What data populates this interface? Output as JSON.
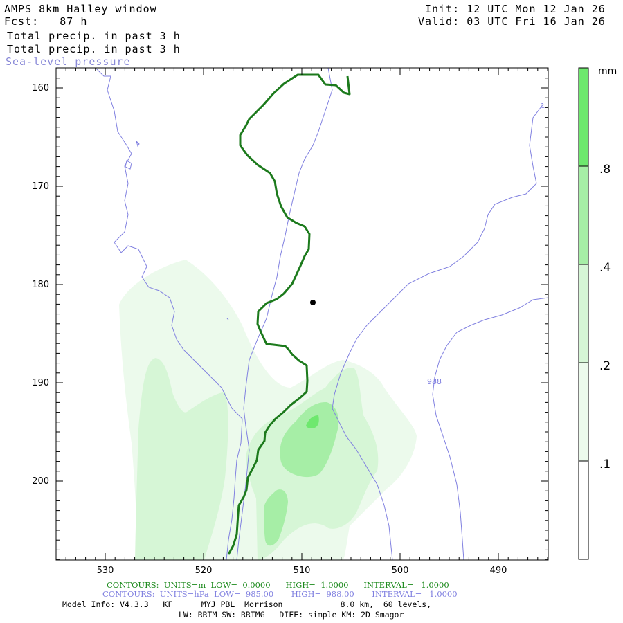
{
  "header": {
    "model_title": "AMPS 8km Halley window",
    "fcst_label": "Fcst:",
    "fcst_value": "87 h",
    "init_label": "Init:",
    "init_value": "12 UTC Mon 12 Jan 26",
    "valid_label": "Valid:",
    "valid_value": "03 UTC Fri 16 Jan 26",
    "field_1": "Total precip. in past 3 h",
    "field_2": "Total precip. in past 3 h",
    "field_3": "Sea-level pressure"
  },
  "axes": {
    "y_ticks": [
      "160",
      "170",
      "180",
      "190",
      "200"
    ],
    "x_ticks": [
      "530",
      "520",
      "510",
      "500",
      "490"
    ]
  },
  "isobars": {
    "label_988": "988",
    "label_edge": "1"
  },
  "colorbar": {
    "unit": "mm",
    "levels": [
      ".1",
      ".2",
      ".4",
      ".8"
    ],
    "colors": [
      "#ffffff",
      "#ecfaec",
      "#d6f6d6",
      "#a6eea6",
      "#6ee86e"
    ]
  },
  "colors": {
    "contour_green": "#1c7a1c",
    "isobar_blue": "#8080e0"
  },
  "footer": {
    "contours_1": "CONTOURS:  UNITS=m  LOW=  0.0000      HIGH=  1.0000      INTERVAL=   1.0000",
    "contours_2": "CONTOURS:  UNITS=hPa  LOW=  985.00       HIGH=  988.00       INTERVAL=   1.0000",
    "model_info_1": "Model Info: V4.3.3   KF      MYJ PBL  Morrison            8.0 km,  60 levels,",
    "model_info_2": "LW: RRTM SW: RRTMG   DIFF: simple KM: 2D Smagor"
  }
}
